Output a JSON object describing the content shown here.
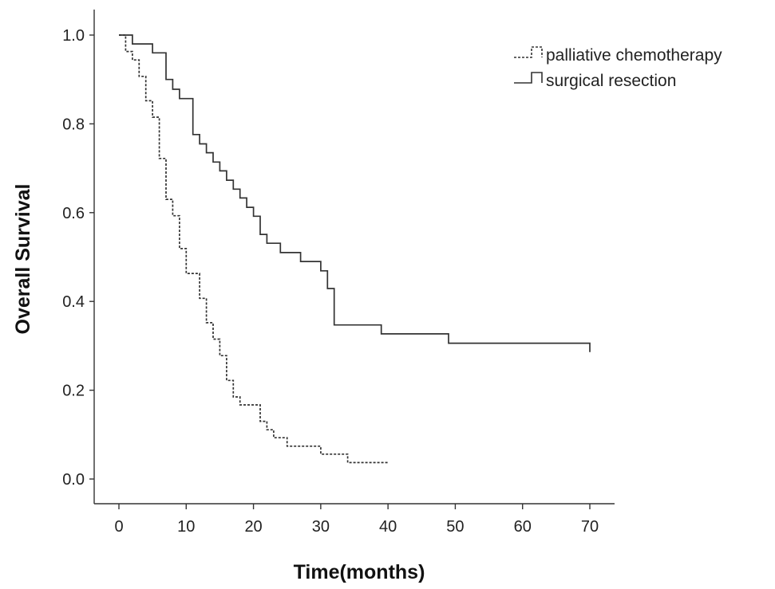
{
  "chart_data": {
    "type": "line",
    "step": true,
    "title": "",
    "xlabel": "Time(months)",
    "ylabel": "Overall Survival",
    "xlim": [
      0,
      70
    ],
    "ylim": [
      0,
      1.0
    ],
    "x_ticks": [
      0,
      10,
      20,
      30,
      40,
      50,
      60,
      70
    ],
    "y_ticks": [
      0.0,
      0.2,
      0.4,
      0.6,
      0.8,
      1.0
    ],
    "x_tick_labels": [
      "0",
      "10",
      "20",
      "30",
      "40",
      "50",
      "60",
      "70"
    ],
    "y_tick_labels": [
      "0.0",
      "0.2",
      "0.4",
      "0.6",
      "0.8",
      "1.0"
    ],
    "grid": false,
    "legend_position": "top-right",
    "series": [
      {
        "name": "palliative chemotherapy",
        "line_style": "dashed",
        "color": "#333333",
        "x": [
          0,
          1,
          2,
          3,
          4,
          5,
          6,
          7,
          8,
          9,
          10,
          11,
          12,
          13,
          14,
          15,
          16,
          17,
          18,
          21,
          22,
          23,
          25,
          30,
          34,
          40
        ],
        "y": [
          1.0,
          0.963,
          0.944,
          0.907,
          0.852,
          0.815,
          0.722,
          0.63,
          0.593,
          0.519,
          0.463,
          0.463,
          0.407,
          0.352,
          0.315,
          0.278,
          0.222,
          0.185,
          0.167,
          0.13,
          0.111,
          0.093,
          0.074,
          0.056,
          0.037,
          0.037
        ]
      },
      {
        "name": "surgical resection",
        "line_style": "solid",
        "color": "#333333",
        "x": [
          0,
          2,
          5,
          7,
          8,
          9,
          11,
          12,
          13,
          14,
          15,
          16,
          17,
          18,
          19,
          20,
          21,
          22,
          24,
          27,
          30,
          31,
          32,
          39,
          49,
          70
        ],
        "y": [
          1.0,
          0.98,
          0.96,
          0.9,
          0.878,
          0.857,
          0.776,
          0.755,
          0.735,
          0.714,
          0.694,
          0.673,
          0.653,
          0.633,
          0.612,
          0.592,
          0.551,
          0.531,
          0.51,
          0.49,
          0.469,
          0.429,
          0.347,
          0.327,
          0.306,
          0.286
        ]
      }
    ]
  }
}
